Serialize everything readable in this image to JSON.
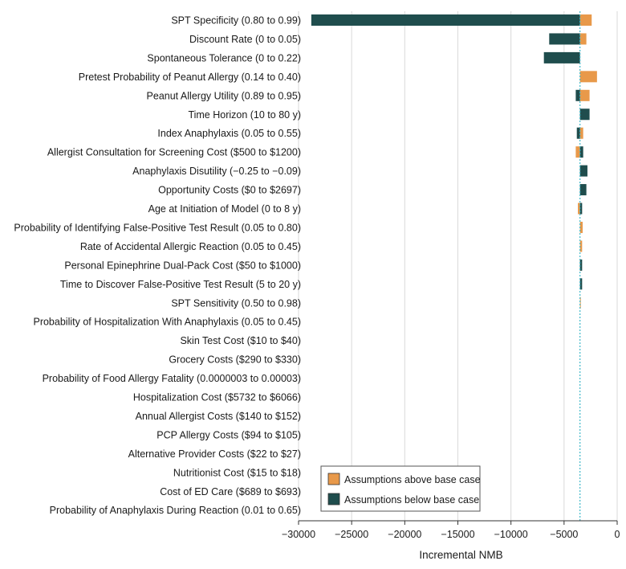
{
  "chart_data": {
    "type": "bar",
    "orientation": "horizontal",
    "chart_style": "tornado",
    "xlabel": "Incremental NMB",
    "xlim": [
      -30000,
      0
    ],
    "xticks": [
      -30000,
      -25000,
      -20000,
      -15000,
      -10000,
      -5000,
      0
    ],
    "xtick_labels": [
      "−30000",
      "−25000",
      "−20000",
      "−15000",
      "−10000",
      "−5000",
      "0"
    ],
    "grid": "vertical",
    "base_case": -3500,
    "legend_position": "bottom-right",
    "categories": [
      "SPT Specificity (0.80 to 0.99)",
      "Discount Rate (0 to 0.05)",
      "Spontaneous Tolerance (0 to 0.22)",
      "Pretest Probability of Peanut Allergy (0.14 to 0.40)",
      "Peanut Allergy Utility (0.89 to 0.95)",
      "Time Horizon (10 to 80 y)",
      "Index Anaphylaxis (0.05 to 0.55)",
      "Allergist Consultation for Screening Cost ($500 to $1200)",
      "Anaphylaxis Disutility (−0.25 to −0.09)",
      "Opportunity Costs ($0 to $2697)",
      "Age at Initiation of Model (0 to 8 y)",
      "Probability of Identifying False-Positive Test Result (0.05 to 0.80)",
      "Rate of Accidental Allergic Reaction (0.05 to 0.45)",
      "Personal Epinephrine Dual-Pack Cost ($50 to $1000)",
      "Time to Discover False-Positive Test Result (5 to 20 y)",
      "SPT Sensitivity (0.50 to 0.98)",
      "Probability of Hospitalization With Anaphylaxis (0.05 to 0.45)",
      "Skin Test Cost ($10 to $40)",
      "Grocery Costs ($290 to $330)",
      "Probability of Food Allergy Fatality (0.0000003 to 0.00003)",
      "Hospitalization Cost ($5732 to $6066)",
      "Annual Allergist Costs ($140 to $152)",
      "PCP Allergy Costs ($94 to $105)",
      "Alternative Provider Costs ($22 to $27)",
      "Nutritionist Cost ($15 to $18)",
      "Cost of ED Care ($689 to $693)",
      "Probability of Anaphylaxis During Reaction (0.01 to 0.65)"
    ],
    "series": [
      {
        "name": "Assumptions above base case",
        "color": "#E8994A",
        "values": [
          -2400,
          -2900,
          -3500,
          -1900,
          -2600,
          -3500,
          -3200,
          -3900,
          -3500,
          -3500,
          -3700,
          -3250,
          -3300,
          -3450,
          -3500,
          -3450,
          -3500,
          -3500,
          -3500,
          -3500,
          -3500,
          -3500,
          -3500,
          -3500,
          -3500,
          -3500,
          -3500
        ]
      },
      {
        "name": "Assumptions below base case",
        "color": "#1F4D4D",
        "values": [
          -28800,
          -6400,
          -6900,
          -3500,
          -3900,
          -2600,
          -3800,
          -3200,
          -2800,
          -2900,
          -3300,
          -3500,
          -3500,
          -3300,
          -3300,
          -3500,
          -3500,
          -3500,
          -3500,
          -3500,
          -3500,
          -3500,
          -3500,
          -3500,
          -3500,
          -3500,
          -3500
        ]
      }
    ]
  }
}
